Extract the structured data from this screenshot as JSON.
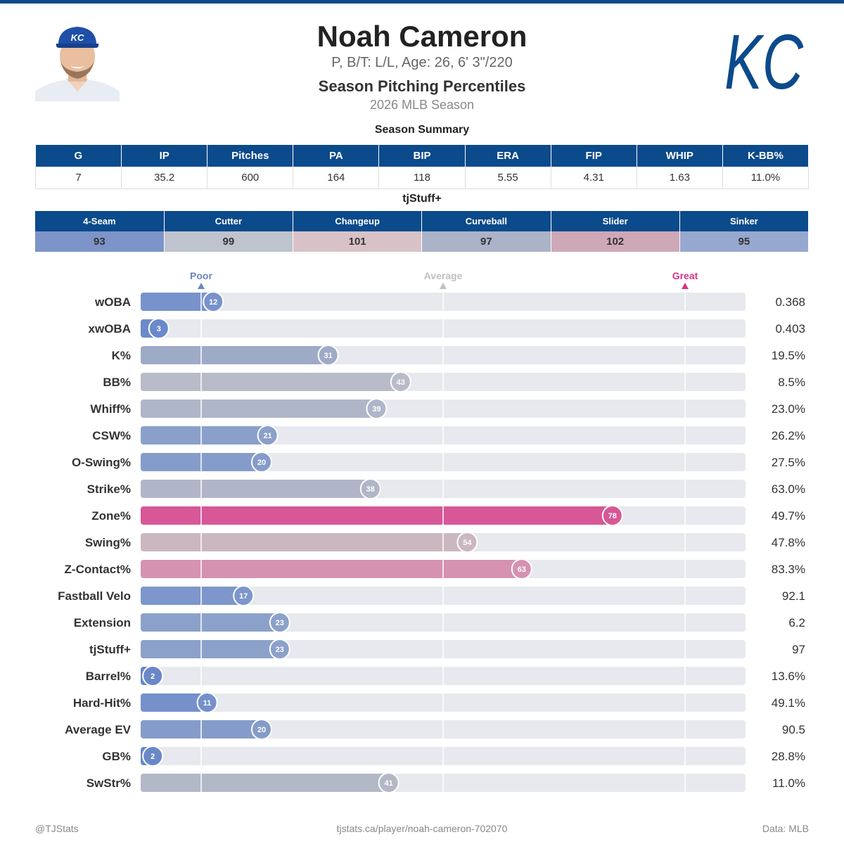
{
  "header": {
    "name": "Noah Cameron",
    "bio": "P, B/T: L/L, Age: 26, 6' 3\"/220",
    "subtitle": "Season Pitching Percentiles",
    "season": "2026 MLB Season",
    "logo_text": "KC",
    "cap_logo_text": "KC"
  },
  "summary": {
    "title": "Season Summary",
    "headers": [
      "G",
      "IP",
      "Pitches",
      "PA",
      "BIP",
      "ERA",
      "FIP",
      "WHIP",
      "K-BB%"
    ],
    "values": [
      "7",
      "35.2",
      "600",
      "164",
      "118",
      "5.55",
      "4.31",
      "1.63",
      "11.0%"
    ]
  },
  "tjstuff": {
    "title": "tjStuff+",
    "headers": [
      "4-Seam",
      "Cutter",
      "Changeup",
      "Curveball",
      "Slider",
      "Sinker"
    ],
    "values": [
      "93",
      "99",
      "101",
      "97",
      "102",
      "95"
    ],
    "colors": [
      "#7d94c9",
      "#bfc3cd",
      "#d8c2c8",
      "#aab3c8",
      "#cfa8b8",
      "#97a8cf"
    ]
  },
  "chart_data": {
    "type": "bar",
    "orientation": "horizontal",
    "xlim": [
      0,
      100
    ],
    "scale_labels": [
      {
        "label": "Poor",
        "value": 10,
        "color": "#6b86c4"
      },
      {
        "label": "Average",
        "value": 50,
        "color": "#c0c0c0"
      },
      {
        "label": "Great",
        "value": 90,
        "color": "#d63384"
      }
    ],
    "reference_lines": [
      10,
      50,
      90
    ],
    "categories": [
      "wOBA",
      "xwOBA",
      "K%",
      "BB%",
      "Whiff%",
      "CSW%",
      "O-Swing%",
      "Strike%",
      "Zone%",
      "Swing%",
      "Z-Contact%",
      "Fastball Velo",
      "Extension",
      "tjStuff+",
      "Barrel%",
      "Hard-Hit%",
      "Average EV",
      "GB%",
      "SwStr%"
    ],
    "series": [
      {
        "values": [
          12,
          3,
          31,
          43,
          39,
          21,
          20,
          38,
          78,
          54,
          63,
          17,
          23,
          23,
          2,
          11,
          20,
          2,
          41
        ],
        "colors": [
          "#7892cc",
          "#6c89c9",
          "#9eabc7",
          "#b8bcc8",
          "#afb6c8",
          "#8aa0ca",
          "#859cca",
          "#b0b6c8",
          "#d75797",
          "#cbb7c0",
          "#d592b1",
          "#7d96cb",
          "#8ca1ca",
          "#8ca1ca",
          "#6a88c8",
          "#7590cb",
          "#859cca",
          "#6a88c8",
          "#b3b8c7"
        ]
      }
    ],
    "stat_values": [
      "0.368",
      "0.403",
      "19.5%",
      "8.5%",
      "23.0%",
      "26.2%",
      "27.5%",
      "63.0%",
      "49.7%",
      "47.8%",
      "83.3%",
      "92.1",
      "6.2",
      "97",
      "13.6%",
      "49.1%",
      "90.5",
      "28.8%",
      "11.0%"
    ]
  },
  "footer": {
    "left": "@TJStats",
    "center": "tjstats.ca/player/noah-cameron-702070",
    "right": "Data: MLB"
  }
}
